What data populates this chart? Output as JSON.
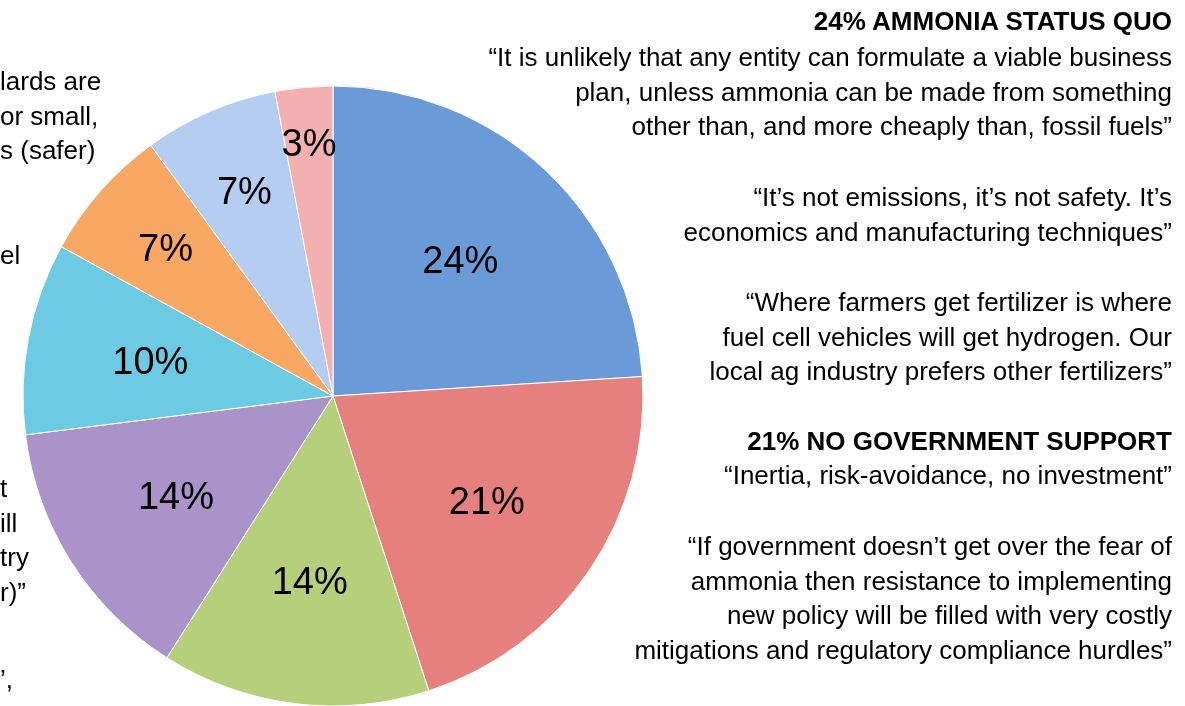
{
  "chart_data": {
    "type": "pie",
    "categories": [
      null,
      null,
      null,
      null,
      null,
      null,
      null,
      null
    ],
    "values": [
      24,
      21,
      14,
      14,
      10,
      7,
      7,
      3
    ],
    "colors": [
      "#6a9ad8",
      "#e6807e",
      "#b5cf7a",
      "#a993c8",
      "#6ccbe3",
      "#f8a862",
      "#b5cdf0",
      "#f2b1b0"
    ],
    "value_labels": [
      "24%",
      "21%",
      "14%",
      "14%",
      "10%",
      "7%",
      "7%",
      "3%"
    ],
    "annotations": [
      "24% AMMONIA STATUS QUO",
      "“It is unlikely that any entity can formulate a viable business\nplan, unless ammonia can be made from something\nother than, and more cheaply than, fossil fuels”",
      "“It’s not emissions, it’s not safety. It’s\neconomics and manufacturing techniques”",
      "“Where farmers get fertilizer is where\nfuel cell vehicles will get hydrogen. Our\nlocal ag industry prefers other fertilizers”",
      "21% NO GOVERNMENT SUPPORT",
      "“Inertia, risk-avoidance, no investment”",
      "“If government doesn’t get over the fear of\nammonia then resistance to implementing\nnew policy will be filled with very costly\nmitigations and regulatory compliance hurdles”",
      "lards are\nor small,\ns (safer)",
      "el",
      "t\nill\ntry\nr)”",
      "’,"
    ]
  }
}
